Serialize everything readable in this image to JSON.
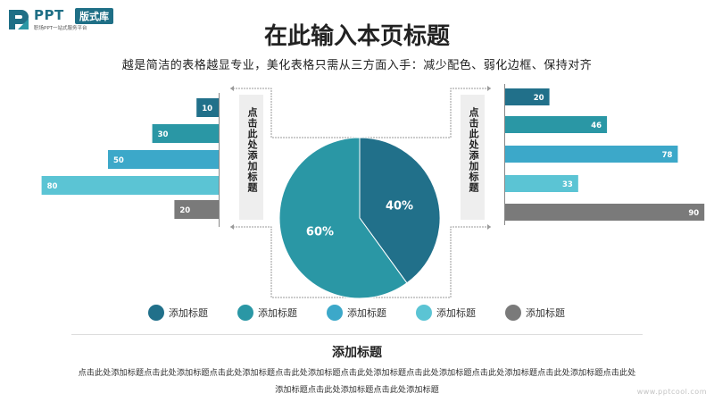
{
  "logo": {
    "text": "PPT",
    "badge": "版式库",
    "tagline": "职场PPT一站式服务平台"
  },
  "title": "在此输入本页标题",
  "subtitle": "越是简洁的表格越显专业，美化表格只需从三方面入手：减少配色、弱化边框、保持对齐",
  "callout_left": "点击此处添加标题",
  "callout_right": "点击此处添加标题",
  "legend": [
    {
      "label": "添加标题",
      "color": "#21708a"
    },
    {
      "label": "添加标题",
      "color": "#2a97a5"
    },
    {
      "label": "添加标题",
      "color": "#3ca8c9"
    },
    {
      "label": "添加标题",
      "color": "#5bc4d4"
    },
    {
      "label": "添加标题",
      "color": "#7a7a7a"
    }
  ],
  "section_title": "添加标题",
  "body_text": "点击此处添加标题点击此处添加标题点击此处添加标题点击此处添加标题点击此处添加标题点击此处添加标题点击此处添加标题点击此处添加标题点击此处添加标题点击此处添加标题点击此处添加标题",
  "watermark": "www.pptcool.com",
  "chart_data": [
    {
      "type": "bar",
      "orientation": "horizontal-left",
      "values": [
        10,
        30,
        50,
        80,
        20
      ],
      "colors": [
        "#21708a",
        "#2a97a5",
        "#3ca8c9",
        "#5bc4d4",
        "#7a7a7a"
      ]
    },
    {
      "type": "bar",
      "orientation": "horizontal-right",
      "values": [
        20,
        46,
        78,
        33,
        90
      ],
      "colors": [
        "#21708a",
        "#2a97a5",
        "#3ca8c9",
        "#5bc4d4",
        "#7a7a7a"
      ]
    },
    {
      "type": "pie",
      "slices": [
        {
          "label": "40%",
          "value": 40,
          "color": "#21708a"
        },
        {
          "label": "60%",
          "value": 60,
          "color": "#2a97a5"
        }
      ]
    }
  ]
}
